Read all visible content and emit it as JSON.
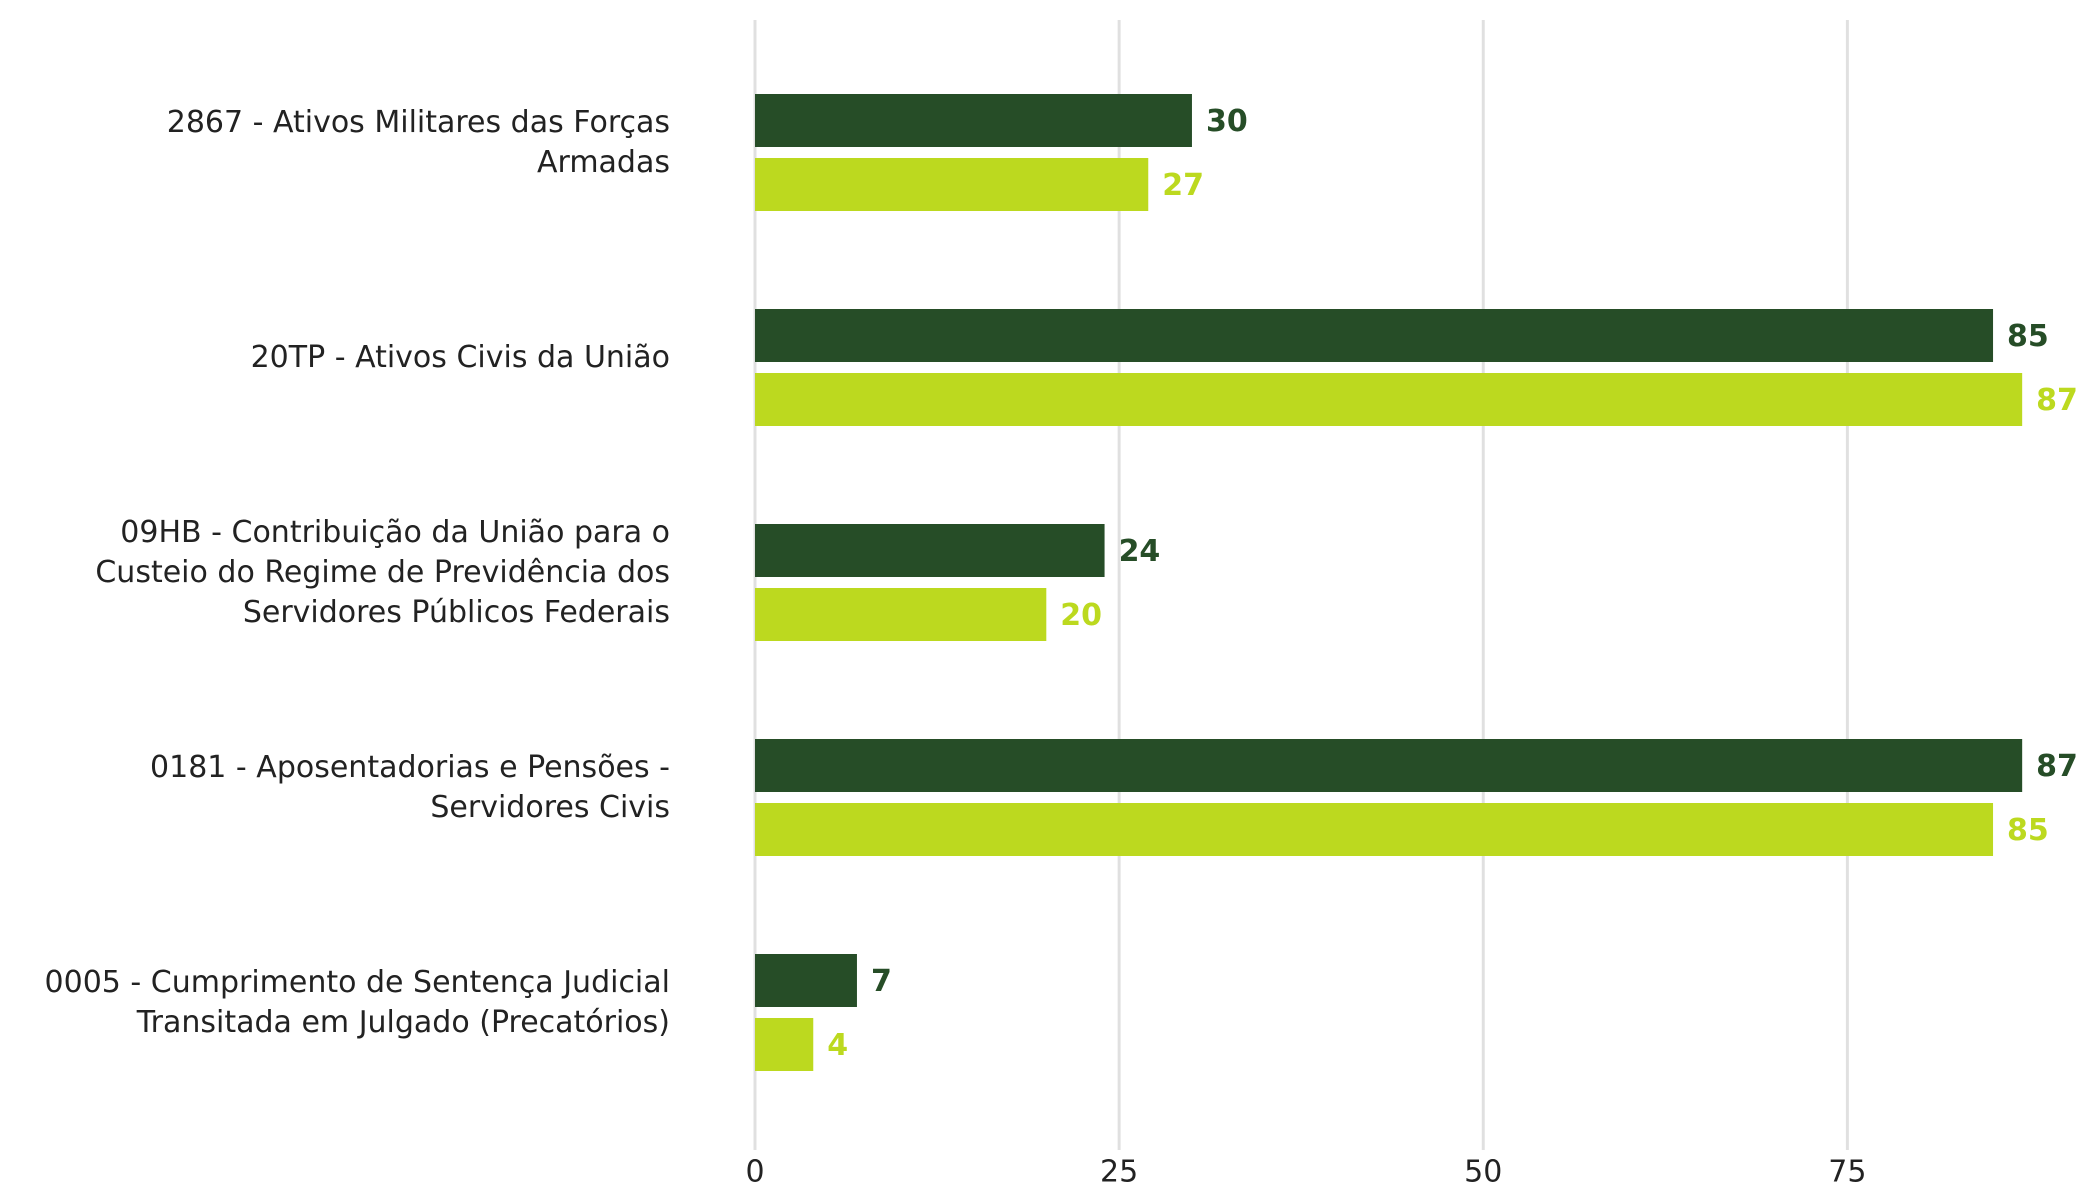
{
  "chart_data": {
    "type": "bar",
    "orientation": "horizontal",
    "categories": [
      "2867 - Ativos Militares das Forças\nArmadas",
      "20TP - Ativos Civis da União",
      "09HB - Contribuição da União para o\nCusteio do Regime de Previdência dos\nServidores Públicos Federais",
      "0181 - Aposentadorias e Pensões -\nServidores Civis",
      "0005 - Cumprimento de Sentença Judicial\nTransitada em Julgado (Precatórios)"
    ],
    "series": [
      {
        "color": "#264d27",
        "values": [
          30,
          85,
          24,
          87,
          7
        ]
      },
      {
        "color": "#bcd91f",
        "values": [
          27,
          87,
          20,
          85,
          4
        ]
      }
    ],
    "xlim": [
      0,
      92
    ],
    "xticks": [
      0,
      25,
      50,
      75
    ],
    "grid": true
  }
}
